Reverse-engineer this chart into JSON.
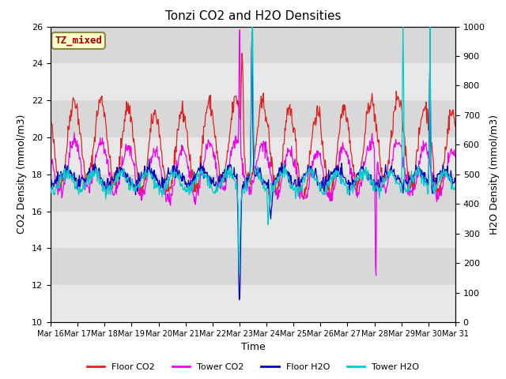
{
  "title": "Tonzi CO2 and H2O Densities",
  "xlabel": "Time",
  "ylabel_left": "CO2 Density (mmol/m3)",
  "ylabel_right": "H2O Density (mmol/m3)",
  "annotation": "TZ_mixed",
  "annotation_color": "#aa0000",
  "annotation_bg": "#ffffcc",
  "annotation_border": "#888844",
  "x_tick_labels": [
    "Mar 16",
    "Mar 17",
    "Mar 18",
    "Mar 19",
    "Mar 20",
    "Mar 21",
    "Mar 22",
    "Mar 23",
    "Mar 24",
    "Mar 25",
    "Mar 26",
    "Mar 27",
    "Mar 28",
    "Mar 29",
    "Mar 30",
    "Mar 31"
  ],
  "ylim_left": [
    10,
    26
  ],
  "ylim_right": [
    0,
    1000
  ],
  "yticks_left": [
    10,
    12,
    14,
    16,
    18,
    20,
    22,
    24,
    26
  ],
  "yticks_right": [
    0,
    100,
    200,
    300,
    400,
    500,
    600,
    700,
    800,
    900,
    1000
  ],
  "colors": {
    "floor_co2": "#dd2222",
    "tower_co2": "#ee00ee",
    "floor_h2o": "#0000bb",
    "tower_h2o": "#00cccc"
  },
  "legend_labels": [
    "Floor CO2",
    "Tower CO2",
    "Floor H2O",
    "Tower H2O"
  ],
  "plot_bg": "#d8d8d8",
  "band_color": "#e8e8e8"
}
